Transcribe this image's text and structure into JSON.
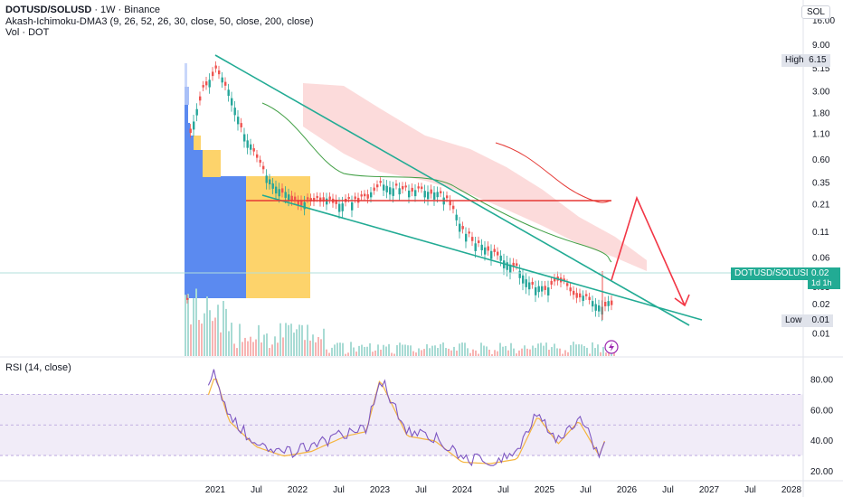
{
  "header": {
    "symbol": "DOTUSD/SOLUSD",
    "interval": "1W",
    "exchange": "Binance",
    "indicator": "Akash-Ichimoku-DMA3 (9, 26, 52, 26, 30, close, 50, close, 200, close)",
    "volume_label": "Vol · DOT",
    "currency": "SOL"
  },
  "price_tags": {
    "high_label": "High",
    "high_value": "6.15",
    "low_label": "Low",
    "low_value": "0.01",
    "last_symbol": "DOTUSD/SOLUSD",
    "last_value": "0.02",
    "countdown": "1d 1h"
  },
  "rsi": {
    "label": "RSI (14, close)"
  },
  "colors": {
    "up": "#26a69a",
    "down": "#ef5350",
    "trendline": "#22ab94",
    "ma_slow": "#e53935",
    "ma_fast": "#43a047",
    "cloud": "#fcd5d5",
    "rsi": "#7e57c2",
    "rsi_ma": "#f5b53f",
    "vp_blue": "#5b8af0",
    "vp_yellow": "#fdd36b",
    "projection": "#f23645",
    "last_price": "#22ab94"
  },
  "chart_data": [
    {
      "type": "candlestick",
      "title": "DOTUSD/SOLUSD · 1W · Binance",
      "y_scale": "log",
      "y_ticks": [
        "16.00",
        "9.00",
        "5.15",
        "3.00",
        "1.80",
        "1.10",
        "0.60",
        "0.35",
        "0.21",
        "0.11",
        "0.06",
        "0.03",
        "0.02",
        "0.01"
      ],
      "x_ticks": [
        "2021",
        "Jul",
        "2022",
        "Jul",
        "2023",
        "Jul",
        "2024",
        "Jul",
        "2025",
        "Jul",
        "2026",
        "Jul",
        "2027",
        "Jul",
        "2028"
      ],
      "high": 6.15,
      "low": 0.01,
      "last": 0.02,
      "series": [
        {
          "name": "DOTUSD/SOLUSD",
          "x": [
            "2020-09",
            "2020-11",
            "2021-01",
            "2021-03",
            "2021-05",
            "2021-07",
            "2021-09",
            "2021-11",
            "2022-01",
            "2022-03",
            "2022-05",
            "2022-07",
            "2022-09",
            "2022-11",
            "2023-01",
            "2023-03",
            "2023-05",
            "2023-07",
            "2023-09",
            "2023-11",
            "2024-01",
            "2024-03",
            "2024-05",
            "2024-07",
            "2024-09",
            "2024-11",
            "2025-01",
            "2025-03",
            "2025-05",
            "2025-07",
            "2025-09",
            "2025-10"
          ],
          "values": [
            1.0,
            3.0,
            5.0,
            2.8,
            1.1,
            0.6,
            0.33,
            0.27,
            0.21,
            0.22,
            0.23,
            0.21,
            0.22,
            0.24,
            0.32,
            0.3,
            0.28,
            0.28,
            0.27,
            0.22,
            0.11,
            0.08,
            0.07,
            0.055,
            0.045,
            0.03,
            0.028,
            0.036,
            0.025,
            0.022,
            0.018,
            0.02
          ]
        }
      ],
      "annotations": [
        "descending wedge",
        "horizontal resistance line",
        "projected move"
      ]
    },
    {
      "type": "line",
      "title": "RSI (14, close)",
      "y_ticks": [
        "80.00",
        "60.00",
        "40.00",
        "20.00"
      ],
      "band": [
        30,
        70
      ],
      "series": [
        {
          "x": [
            "2020-12",
            "2021-01",
            "2021-03",
            "2021-07",
            "2021-11",
            "2022-03",
            "2022-08",
            "2022-11",
            "2023-01",
            "2023-05",
            "2023-09",
            "2024-01",
            "2024-05",
            "2024-09",
            "2024-12",
            "2025-03",
            "2025-06",
            "2025-09",
            "2025-10"
          ],
          "values": [
            72,
            85,
            55,
            38,
            32,
            35,
            45,
            48,
            82,
            45,
            42,
            28,
            27,
            30,
            58,
            40,
            55,
            32,
            45
          ]
        }
      ]
    }
  ]
}
